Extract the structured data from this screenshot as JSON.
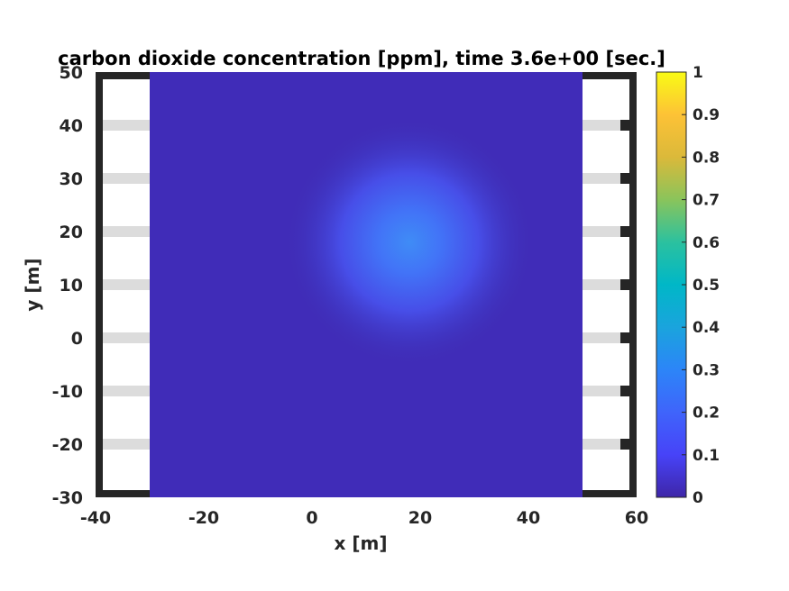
{
  "chart_data": {
    "type": "heatmap",
    "title": "carbon dioxide concentration [ppm], time 3.6e+00 [sec.]",
    "xlabel": "x [m]",
    "ylabel": "y [m]",
    "xlim": [
      -40,
      60
    ],
    "ylim": [
      -30,
      50
    ],
    "x_ticks": [
      "-40",
      "-20",
      "0",
      "20",
      "40",
      "60"
    ],
    "y_ticks": [
      "50",
      "40",
      "30",
      "20",
      "10",
      "0",
      "-10",
      "-20",
      "-30"
    ],
    "field": {
      "extent_x": [
        -30,
        50
      ],
      "extent_y": [
        -30,
        50
      ],
      "background_value": 0.02,
      "peak": {
        "x": 18,
        "y": 18,
        "value": 0.25
      }
    },
    "colorbar": {
      "colormap": "parula",
      "range": [
        0,
        1
      ],
      "ticks": [
        "1",
        "0.9",
        "0.8",
        "0.7",
        "0.6",
        "0.5",
        "0.4",
        "0.3",
        "0.2",
        "0.1",
        "0"
      ]
    },
    "background_structures": {
      "wall_color": "#262626",
      "stripe_color": "#dcdcdc",
      "stripe_y_values": [
        40,
        30,
        20,
        10,
        0,
        -10,
        -20
      ]
    }
  }
}
